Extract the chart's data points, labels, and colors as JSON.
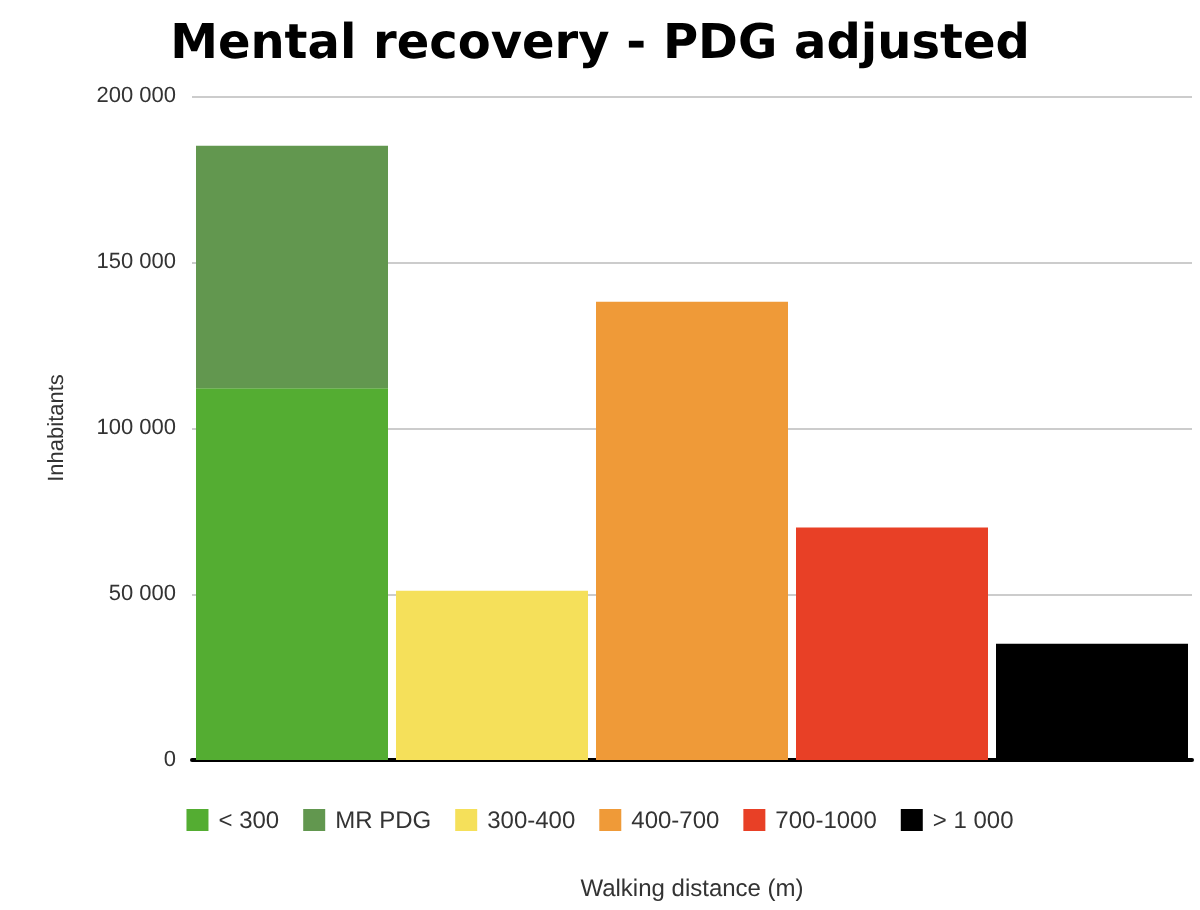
{
  "chart_data": {
    "type": "bar",
    "title": "Mental recovery - PDG adjusted",
    "xlabel": "Walking distance (m)",
    "ylabel": "Inhabitants",
    "categories": [
      null,
      null,
      null,
      null,
      null
    ],
    "stacked": true,
    "series": [
      {
        "name": "< 300",
        "color": "#54ad32",
        "values": [
          112000,
          null,
          null,
          null,
          null
        ]
      },
      {
        "name": "MR PDG",
        "color": "#62974f",
        "values": [
          73000,
          null,
          null,
          null,
          null
        ]
      },
      {
        "name": "300-400",
        "color": "#f5e05a",
        "values": [
          null,
          51000,
          null,
          null,
          null
        ]
      },
      {
        "name": "400-700",
        "color": "#ef9a38",
        "values": [
          null,
          null,
          138000,
          null,
          null
        ]
      },
      {
        "name": "700-1000",
        "color": "#e84026",
        "values": [
          null,
          null,
          null,
          70000,
          null
        ]
      },
      {
        "name": "> 1 000",
        "color": "#000000",
        "values": [
          null,
          null,
          null,
          null,
          35000
        ]
      }
    ],
    "ylim": [
      0,
      200000
    ],
    "yticks": [
      0,
      {
        "value": 50000,
        "label": "50 000"
      },
      {
        "value": 100000,
        "label": "100 000"
      },
      {
        "value": 150000,
        "label": "150 000"
      },
      {
        "value": 200000,
        "label": "200 000"
      }
    ],
    "grid": "y",
    "legend": "bottom",
    "tick_labels": "y"
  }
}
